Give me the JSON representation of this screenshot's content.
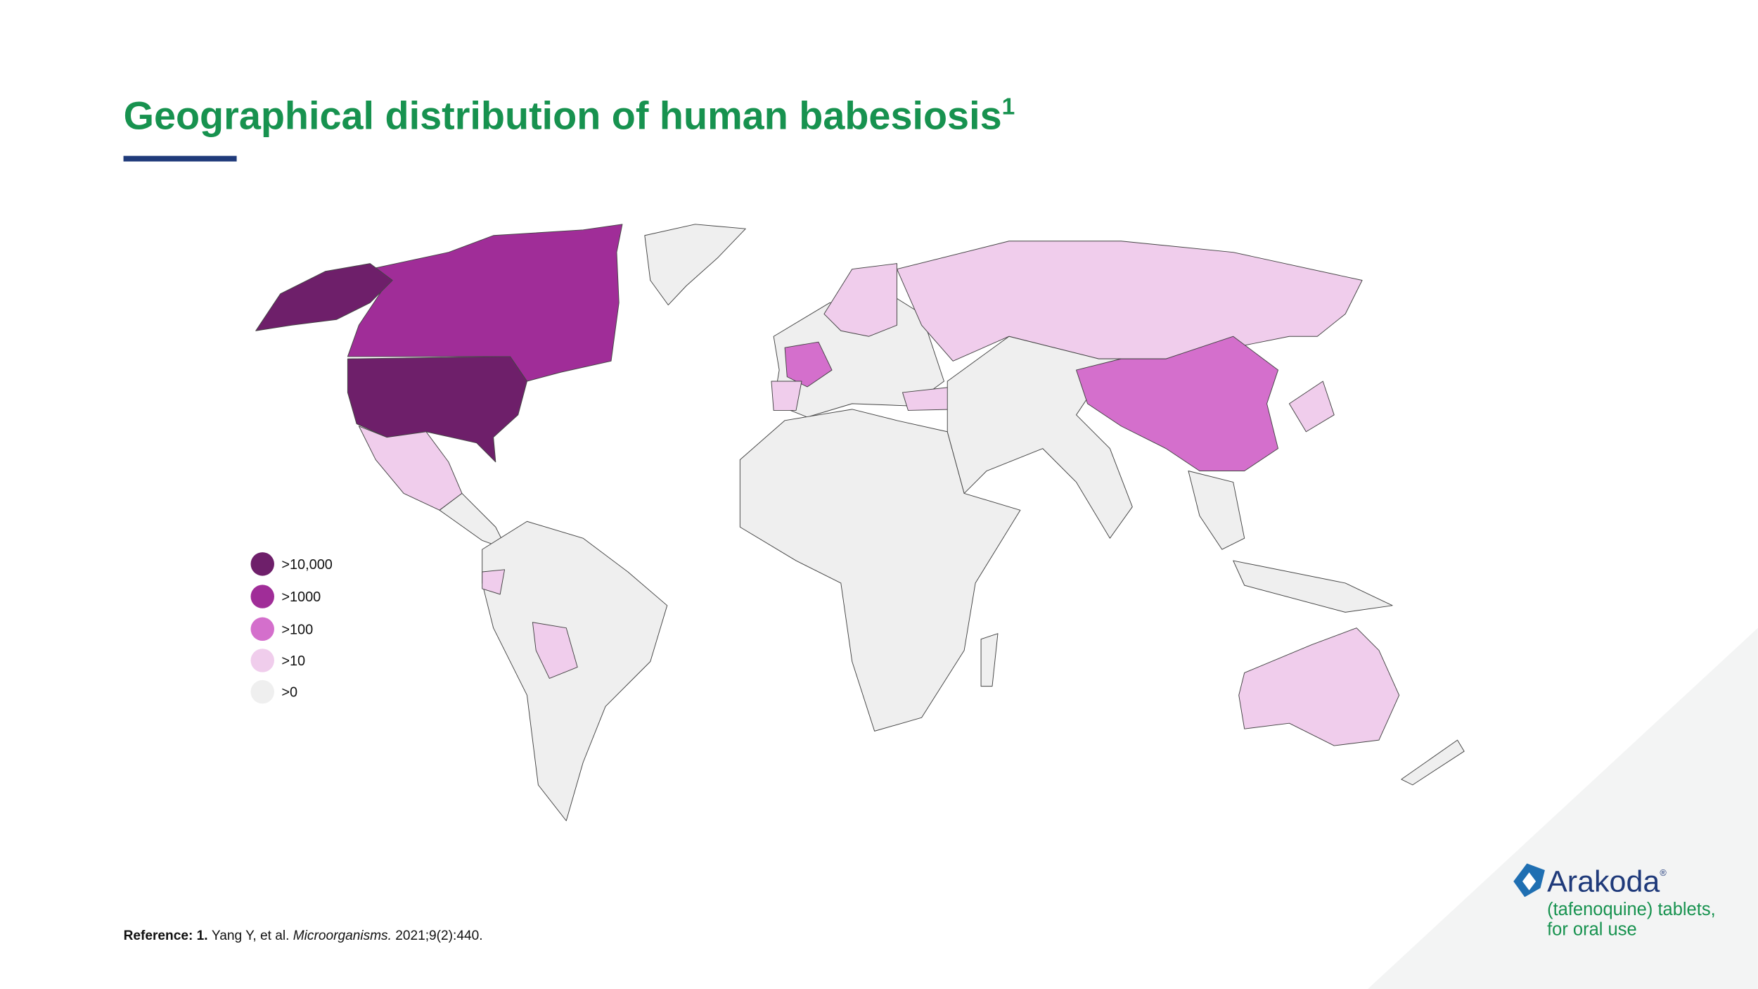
{
  "header": {
    "title": "Geographical distribution of human babesiosis",
    "superscript": "1"
  },
  "legend": {
    "items": [
      {
        "label": ">10,000",
        "color": "#6e1f6a"
      },
      {
        "label": ">1000",
        "color": "#a02d98"
      },
      {
        "label": ">100",
        "color": "#d46fcc"
      },
      {
        "label": ">10",
        "color": "#f0cdec"
      },
      {
        "label": ">0",
        "color": "#efefef"
      }
    ]
  },
  "reference": {
    "label": "Reference:",
    "number": "1.",
    "authors": "Yang Y, et al.",
    "journal": "Microorganisms.",
    "citation": "2021;9(2):440."
  },
  "logo": {
    "brand": "Arakoda",
    "mark": "®",
    "line1": "(tafenoquine) tablets,",
    "line2": "for oral use"
  }
}
